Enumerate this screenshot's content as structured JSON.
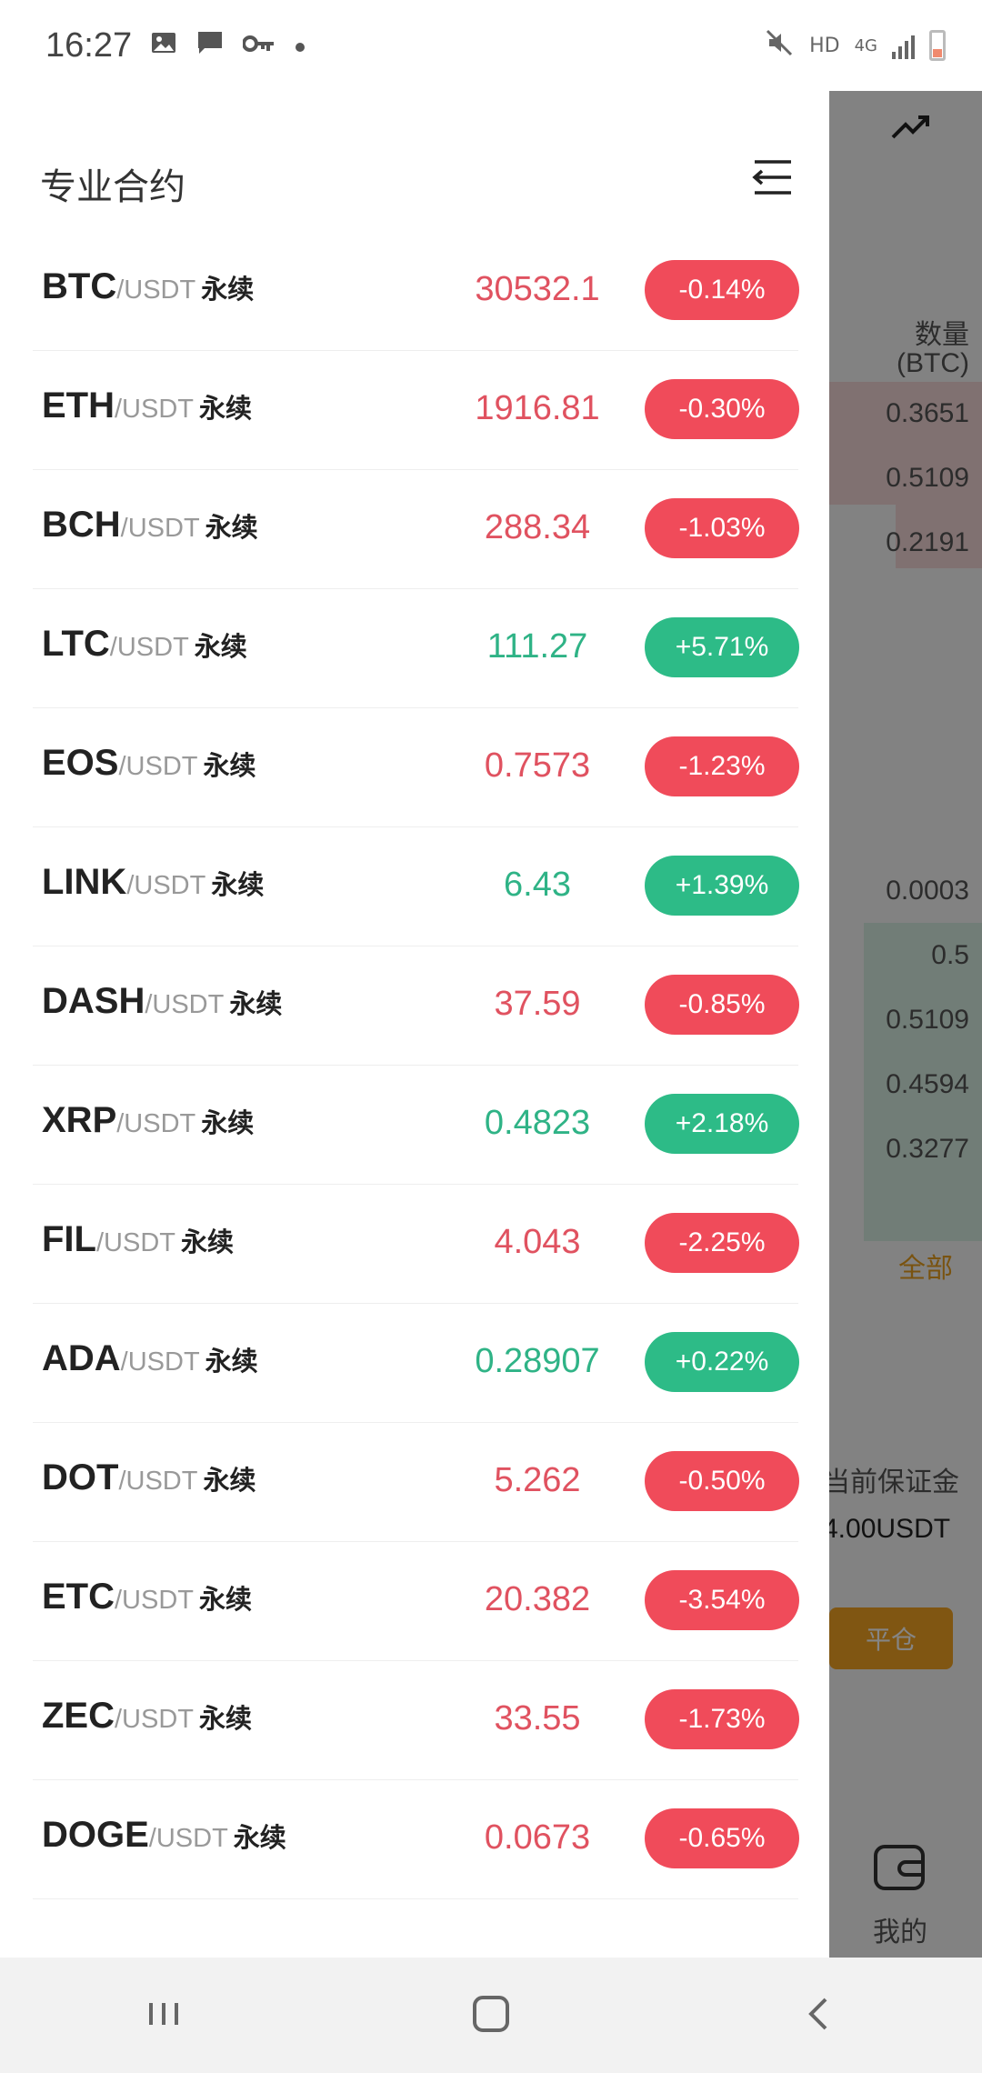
{
  "status_bar": {
    "time": "16:27",
    "icons_left": [
      "image-icon",
      "message-icon",
      "key-icon",
      "dot-icon"
    ],
    "network_label": "HD",
    "network_type": "4G"
  },
  "background": {
    "qty_label": "数量",
    "qty_unit": "(BTC)",
    "asks": [
      "0.3651",
      "0.5109",
      "0.2191"
    ],
    "bids": [
      "0.0003",
      "0.5",
      "0.5109",
      "0.4594",
      "0.3277"
    ],
    "filter_all": "全部",
    "margin_label": "当前保证金",
    "margin_value": "4.00USDT",
    "close_button": "平仓",
    "nav_mine": "我的"
  },
  "drawer": {
    "title": "专业合约",
    "quote_suffix": "/USDT",
    "perpetual_label": "永续",
    "items": [
      {
        "symbol": "BTC",
        "quote": "/USDT",
        "type": "永续",
        "price": "30532.1",
        "change": "-0.14%",
        "direction": "down"
      },
      {
        "symbol": "ETH",
        "quote": "/USDT",
        "type": "永续",
        "price": "1916.81",
        "change": "-0.30%",
        "direction": "down"
      },
      {
        "symbol": "BCH",
        "quote": "/USDT",
        "type": "永续",
        "price": "288.34",
        "change": "-1.03%",
        "direction": "down"
      },
      {
        "symbol": "LTC",
        "quote": "/USDT",
        "type": "永续",
        "price": "111.27",
        "change": "+5.71%",
        "direction": "up"
      },
      {
        "symbol": "EOS",
        "quote": "/USDT",
        "type": "永续",
        "price": "0.7573",
        "change": "-1.23%",
        "direction": "down"
      },
      {
        "symbol": "LINK",
        "quote": "/USDT",
        "type": "永续",
        "price": "6.43",
        "change": "+1.39%",
        "direction": "up"
      },
      {
        "symbol": "DASH",
        "quote": "/USDT",
        "type": "永续",
        "price": "37.59",
        "change": "-0.85%",
        "direction": "down"
      },
      {
        "symbol": "XRP",
        "quote": "/USDT",
        "type": "永续",
        "price": "0.4823",
        "change": "+2.18%",
        "direction": "up"
      },
      {
        "symbol": "FIL",
        "quote": "/USDT",
        "type": "永续",
        "price": "4.043",
        "change": "-2.25%",
        "direction": "down"
      },
      {
        "symbol": "ADA",
        "quote": "/USDT",
        "type": "永续",
        "price": "0.28907",
        "change": "+0.22%",
        "direction": "up"
      },
      {
        "symbol": "DOT",
        "quote": "/USDT",
        "type": "永续",
        "price": "5.262",
        "change": "-0.50%",
        "direction": "down"
      },
      {
        "symbol": "ETC",
        "quote": "/USDT",
        "type": "永续",
        "price": "20.382",
        "change": "-3.54%",
        "direction": "down"
      },
      {
        "symbol": "ZEC",
        "quote": "/USDT",
        "type": "永续",
        "price": "33.55",
        "change": "-1.73%",
        "direction": "down"
      },
      {
        "symbol": "DOGE",
        "quote": "/USDT",
        "type": "永续",
        "price": "0.0673",
        "change": "-0.65%",
        "direction": "down"
      }
    ]
  },
  "colors": {
    "down": "#f04b5a",
    "up": "#2dbb87",
    "price_down": "#e05260",
    "price_up": "#2fb386",
    "accent": "#f5a623"
  },
  "nav_bar": {
    "buttons": [
      "recent-apps-icon",
      "home-icon",
      "back-icon"
    ]
  }
}
